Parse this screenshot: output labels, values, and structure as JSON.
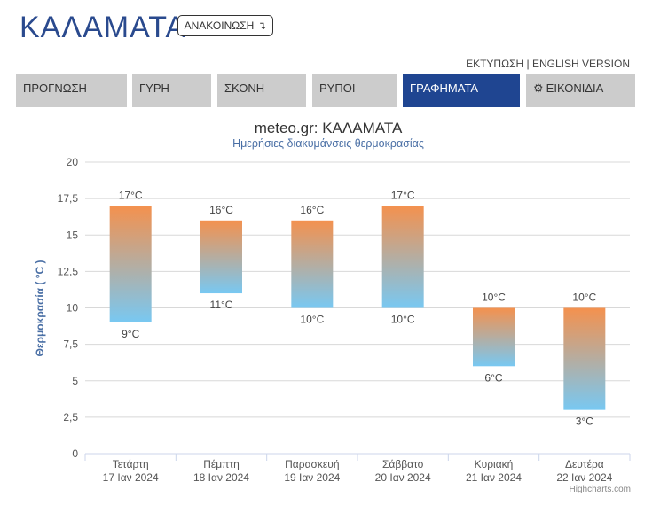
{
  "header": {
    "title": "ΚΑΛΑΜΑΤΑ",
    "announce_label": "ΑΝΑΚΟΙΝΩΣΗ",
    "announce_icon": "arrow-down-right-icon",
    "print_label": "ΕΚΤΥΠΩΣΗ",
    "separator": "|",
    "english_label": "ENGLISH VERSION"
  },
  "tabs": [
    {
      "label": "ΠΡΟΓΝΩΣΗ",
      "active": false
    },
    {
      "label": "ΓΥΡΗ",
      "active": false
    },
    {
      "label": "ΣΚΟΝΗ",
      "active": false
    },
    {
      "label": "ΡΥΠΟΙ",
      "active": false
    },
    {
      "label": "ΓΡΑΦΗΜΑΤΑ",
      "active": true
    },
    {
      "label": "ΕΙΚΟΝΙΔΙΑ",
      "active": false,
      "icon": "gear-icon"
    }
  ],
  "colors": {
    "title": "#2a4a8e",
    "tab_active": "#1f4591",
    "tab_inactive": "#cccccc",
    "bar_top": "#f4914e",
    "bar_bottom": "#78c8f2"
  },
  "chart_data": {
    "type": "bar",
    "subtype": "columnrange",
    "title": "meteo.gr: ΚΑΛΑΜΑΤΑ",
    "subtitle": "Ημερήσιες διακυμάνσεις θερμοκρασίας",
    "ylabel": "Θερμοκρασία ( °C )",
    "xlabel": "",
    "ylim": [
      0,
      20
    ],
    "yticks": [
      "0",
      "2,5",
      "5",
      "7,5",
      "10",
      "12,5",
      "15",
      "17,5",
      "20"
    ],
    "grid": true,
    "legend": "none",
    "categories": [
      {
        "day": "Τετάρτη",
        "date": "17 Ιαν 2024"
      },
      {
        "day": "Πέμπτη",
        "date": "18 Ιαν 2024"
      },
      {
        "day": "Παρασκευή",
        "date": "19 Ιαν 2024"
      },
      {
        "day": "Σάββατο",
        "date": "20 Ιαν 2024"
      },
      {
        "day": "Κυριακή",
        "date": "21 Ιαν 2024"
      },
      {
        "day": "Δευτέρα",
        "date": "22 Ιαν 2024"
      }
    ],
    "low": [
      9,
      11,
      10,
      10,
      6,
      3
    ],
    "high": [
      17,
      16,
      16,
      17,
      10,
      10
    ],
    "low_labels": [
      "9°C",
      "11°C",
      "10°C",
      "10°C",
      "6°C",
      "3°C"
    ],
    "high_labels": [
      "17°C",
      "16°C",
      "16°C",
      "17°C",
      "10°C",
      "10°C"
    ],
    "credit": "Highcharts.com"
  }
}
